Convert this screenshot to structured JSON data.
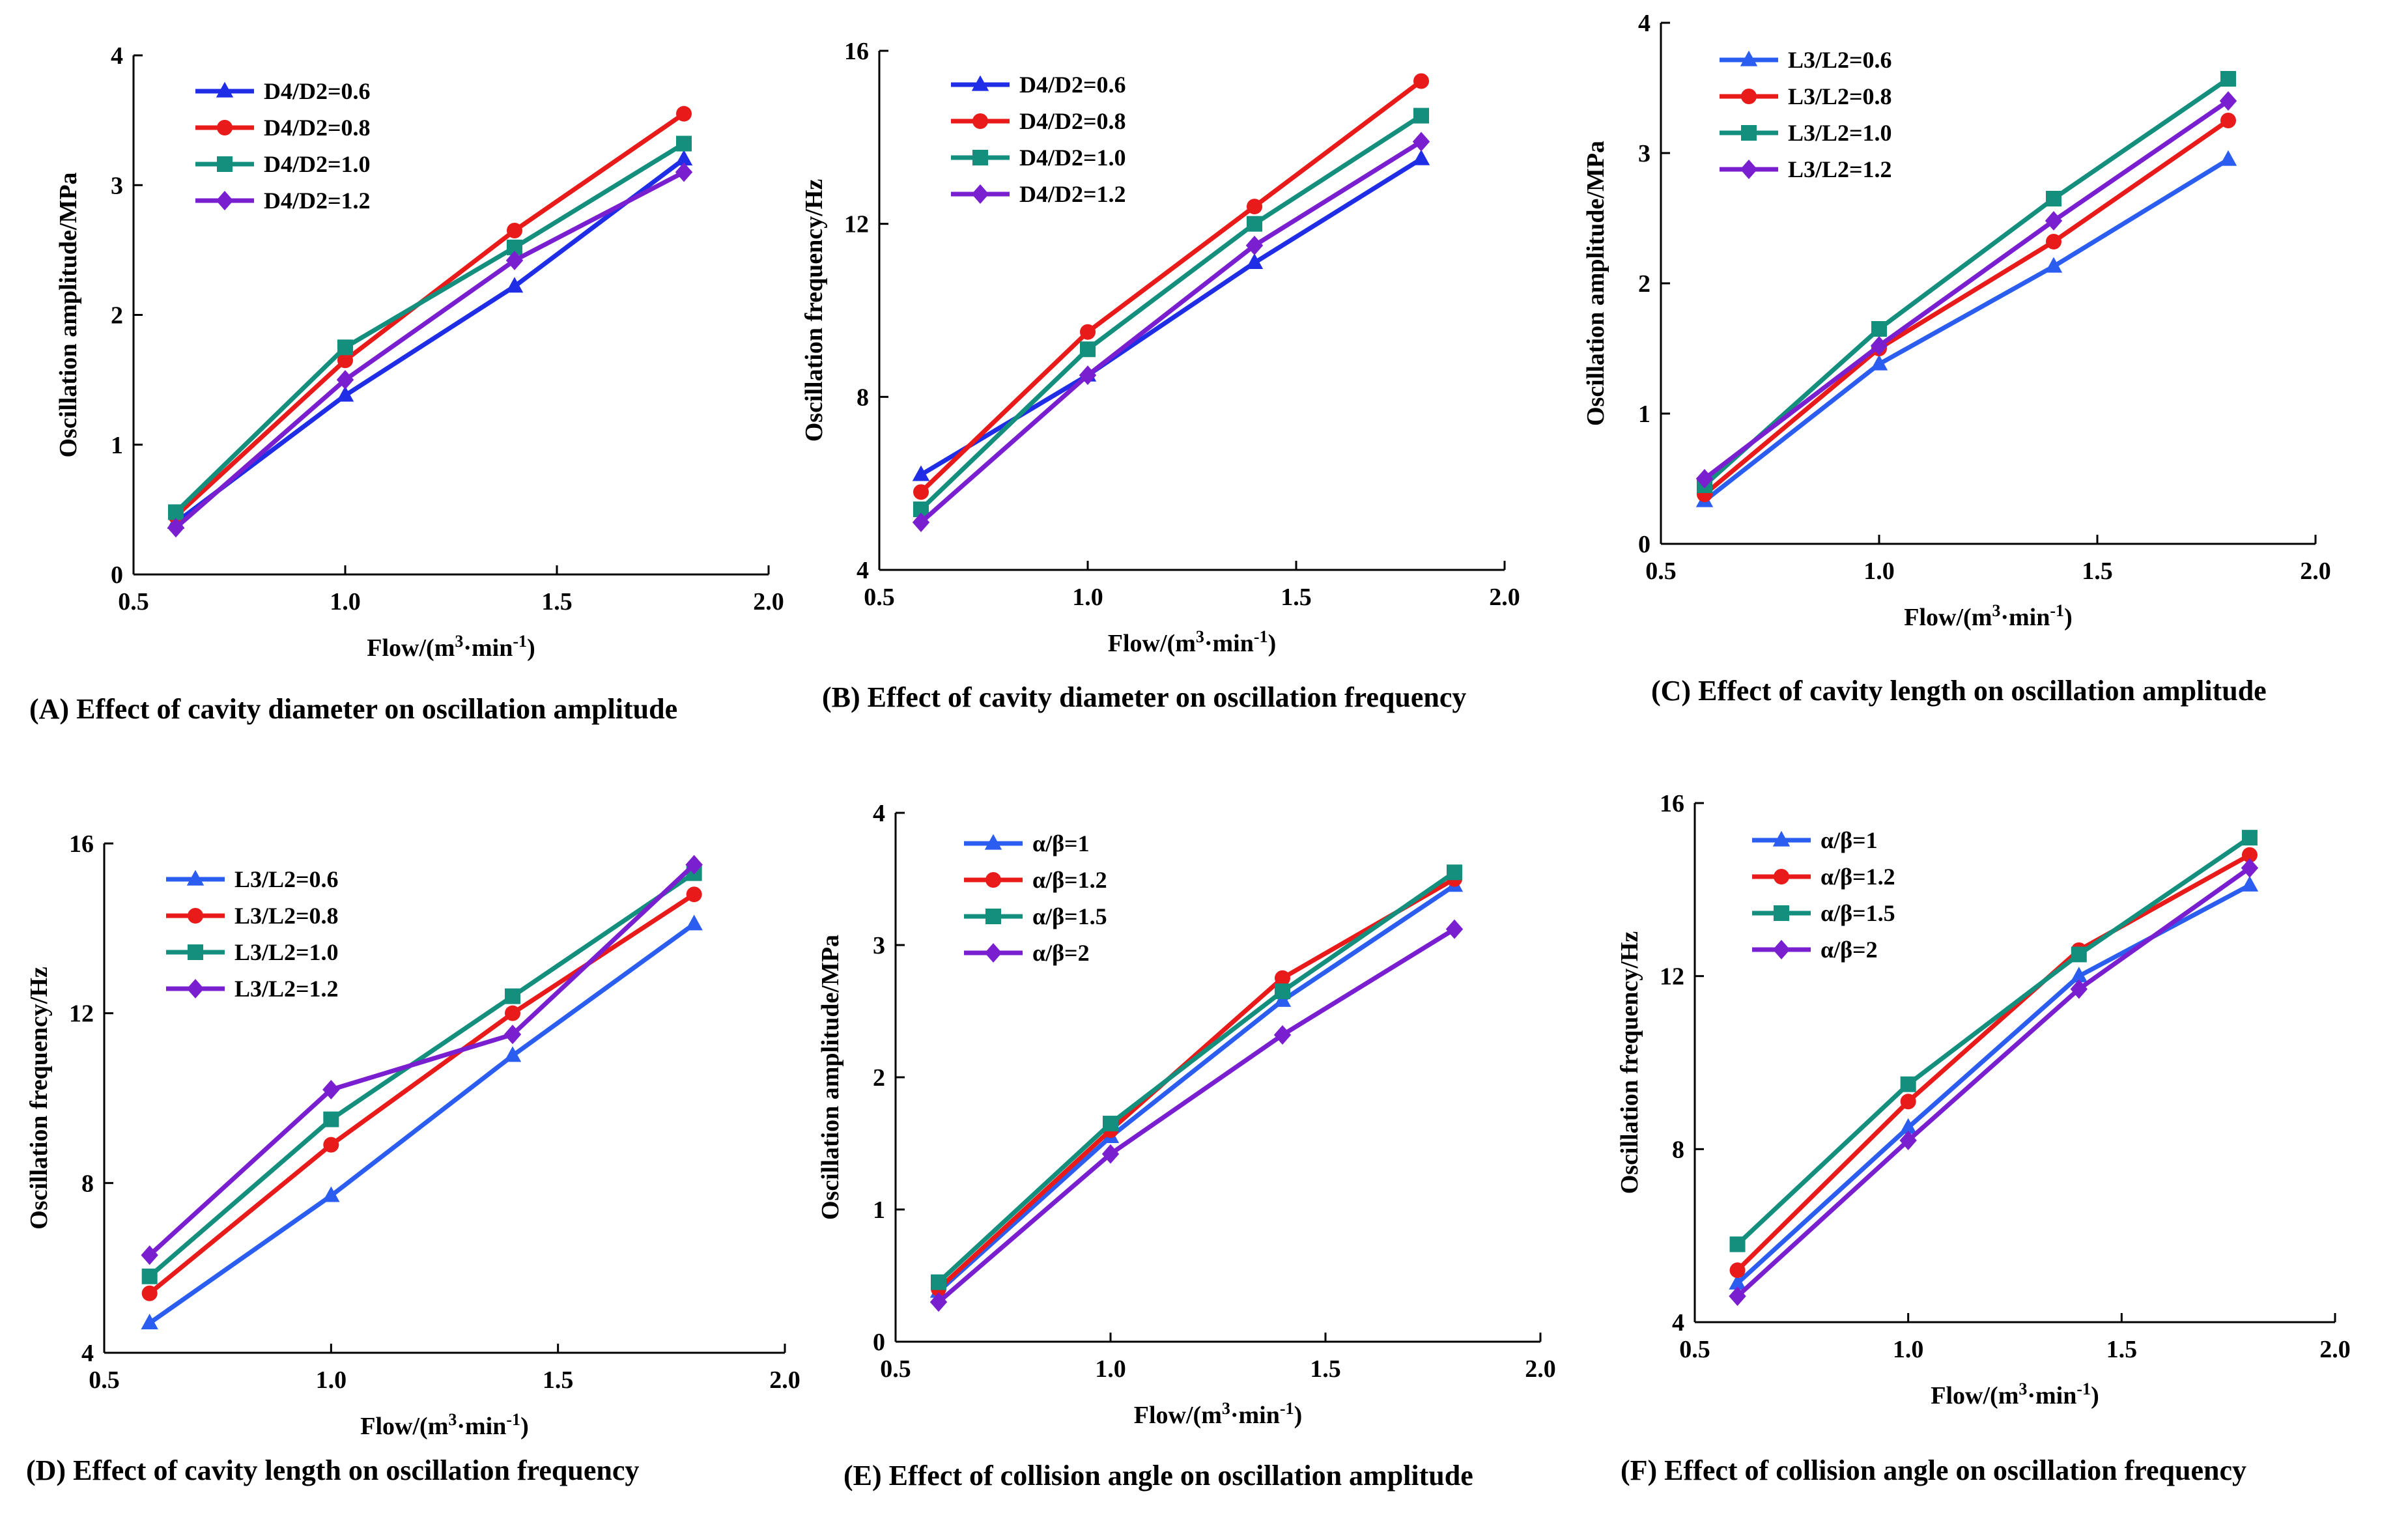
{
  "chart_data": [
    {
      "type": "line",
      "caption": "(A) Effect of cavity diameter on oscillation amplitude",
      "xlabel_main": "Flow/(m",
      "xlabel_sup1": "3",
      "xlabel_mid": "·min",
      "xlabel_sup2": "-1",
      "xlabel_end": ")",
      "ylabel": "Oscillation amplitude/MPa",
      "xlim": [
        0.5,
        2.0
      ],
      "ylim": [
        0,
        4
      ],
      "xticks": [
        "0.5",
        "1.0",
        "1.5",
        "2.0"
      ],
      "yticks": [
        "0",
        "1",
        "2",
        "3",
        "4"
      ],
      "x": [
        0.6,
        1.0,
        1.4,
        1.8
      ],
      "series": [
        {
          "name": "D4/D2=0.6",
          "color": "#1f2ee6",
          "marker": "triangle",
          "values": [
            0.4,
            1.38,
            2.22,
            3.2
          ]
        },
        {
          "name": "D4/D2=0.8",
          "color": "#e81a1a",
          "marker": "circle",
          "values": [
            0.45,
            1.65,
            2.65,
            3.55
          ]
        },
        {
          "name": "D4/D2=1.0",
          "color": "#148f7e",
          "marker": "square",
          "values": [
            0.48,
            1.75,
            2.52,
            3.32
          ]
        },
        {
          "name": "D4/D2=1.2",
          "color": "#7a1fd0",
          "marker": "diamond",
          "values": [
            0.36,
            1.5,
            2.42,
            3.1
          ]
        }
      ]
    },
    {
      "type": "line",
      "caption": "(B) Effect of cavity diameter on oscillation frequency",
      "xlabel_main": "Flow/(m",
      "xlabel_sup1": "3",
      "xlabel_mid": "·min",
      "xlabel_sup2": "-1",
      "xlabel_end": ")",
      "ylabel": "Oscillation frequency/Hz",
      "xlim": [
        0.5,
        2.0
      ],
      "ylim": [
        4,
        16
      ],
      "xticks": [
        "0.5",
        "1.0",
        "1.5",
        "2.0"
      ],
      "yticks": [
        "4",
        "8",
        "12",
        "16"
      ],
      "x": [
        0.6,
        1.0,
        1.4,
        1.8
      ],
      "series": [
        {
          "name": "D4/D2=0.6",
          "color": "#1f2ee6",
          "marker": "triangle",
          "values": [
            6.2,
            8.5,
            11.1,
            13.5
          ]
        },
        {
          "name": "D4/D2=0.8",
          "color": "#e81a1a",
          "marker": "circle",
          "values": [
            5.8,
            9.5,
            12.4,
            15.3
          ]
        },
        {
          "name": "D4/D2=1.0",
          "color": "#148f7e",
          "marker": "square",
          "values": [
            5.4,
            9.1,
            12.0,
            14.5
          ]
        },
        {
          "name": "D4/D2=1.2",
          "color": "#7a1fd0",
          "marker": "diamond",
          "values": [
            5.1,
            8.5,
            11.5,
            13.9
          ]
        }
      ]
    },
    {
      "type": "line",
      "caption": "(C) Effect of cavity length on oscillation amplitude",
      "xlabel_main": "Flow/(m",
      "xlabel_sup1": "3",
      "xlabel_mid": "·min",
      "xlabel_sup2": "-1",
      "xlabel_end": ")",
      "ylabel": "Oscillation amplitude/MPa",
      "xlim": [
        0.5,
        2.0
      ],
      "ylim": [
        0,
        4
      ],
      "xticks": [
        "0.5",
        "1.0",
        "1.5",
        "2.0"
      ],
      "yticks": [
        "0",
        "1",
        "2",
        "3",
        "4"
      ],
      "x": [
        0.6,
        1.0,
        1.4,
        1.8
      ],
      "series": [
        {
          "name": "L3/L2=0.6",
          "color": "#2b5ef0",
          "marker": "triangle",
          "values": [
            0.33,
            1.38,
            2.13,
            2.95
          ]
        },
        {
          "name": "L3/L2=0.8",
          "color": "#e81a1a",
          "marker": "circle",
          "values": [
            0.38,
            1.5,
            2.32,
            3.25
          ]
        },
        {
          "name": "L3/L2=1.0",
          "color": "#148f7e",
          "marker": "square",
          "values": [
            0.45,
            1.65,
            2.65,
            3.57
          ]
        },
        {
          "name": "L3/L2=1.2",
          "color": "#7a1fd0",
          "marker": "diamond",
          "values": [
            0.5,
            1.52,
            2.48,
            3.4
          ]
        }
      ]
    },
    {
      "type": "line",
      "caption": "(D) Effect of cavity length on oscillation frequency",
      "xlabel_main": "Flow/(m",
      "xlabel_sup1": "3",
      "xlabel_mid": "·min",
      "xlabel_sup2": "-1",
      "xlabel_end": ")",
      "ylabel": "Oscillation frequency/Hz",
      "xlim": [
        0.5,
        2.0
      ],
      "ylim": [
        4,
        16
      ],
      "xticks": [
        "0.5",
        "1.0",
        "1.5",
        "2.0"
      ],
      "yticks": [
        "4",
        "8",
        "12",
        "16"
      ],
      "x": [
        0.6,
        1.0,
        1.4,
        1.8
      ],
      "series": [
        {
          "name": "L3/L2=0.6",
          "color": "#2b5ef0",
          "marker": "triangle",
          "values": [
            4.7,
            7.7,
            11.0,
            14.1
          ]
        },
        {
          "name": "L3/L2=0.8",
          "color": "#e81a1a",
          "marker": "circle",
          "values": [
            5.4,
            8.9,
            12.0,
            14.8
          ]
        },
        {
          "name": "L3/L2=1.0",
          "color": "#148f7e",
          "marker": "square",
          "values": [
            5.8,
            9.5,
            12.4,
            15.3
          ]
        },
        {
          "name": "L3/L2=1.2",
          "color": "#7a1fd0",
          "marker": "diamond",
          "values": [
            6.3,
            10.2,
            11.5,
            15.5
          ]
        }
      ]
    },
    {
      "type": "line",
      "caption": "(E) Effect of collision angle on oscillation amplitude",
      "xlabel_main": "Flow/(m",
      "xlabel_sup1": "3",
      "xlabel_mid": "·min",
      "xlabel_sup2": "-1",
      "xlabel_end": ")",
      "ylabel": "Oscillation amplitude/MPa",
      "xlim": [
        0.5,
        2.0
      ],
      "ylim": [
        0,
        4
      ],
      "xticks": [
        "0.5",
        "1.0",
        "1.5",
        "2.0"
      ],
      "yticks": [
        "0",
        "1",
        "2",
        "3",
        "4"
      ],
      "x": [
        0.6,
        1.0,
        1.4,
        1.8
      ],
      "series": [
        {
          "name": "α/β=1",
          "color": "#2b5ef0",
          "marker": "triangle",
          "values": [
            0.38,
            1.55,
            2.58,
            3.45
          ]
        },
        {
          "name": "α/β=1.2",
          "color": "#e81a1a",
          "marker": "circle",
          "values": [
            0.4,
            1.6,
            2.75,
            3.5
          ]
        },
        {
          "name": "α/β=1.5",
          "color": "#148f7e",
          "marker": "square",
          "values": [
            0.45,
            1.65,
            2.65,
            3.55
          ]
        },
        {
          "name": "α/β=2",
          "color": "#7a1fd0",
          "marker": "diamond",
          "values": [
            0.3,
            1.42,
            2.32,
            3.12
          ]
        }
      ]
    },
    {
      "type": "line",
      "caption": "(F) Effect of collision angle on oscillation frequency",
      "xlabel_main": "Flow/(m",
      "xlabel_sup1": "3",
      "xlabel_mid": "·min",
      "xlabel_sup2": "-1",
      "xlabel_end": ")",
      "ylabel": "Oscillation frequency/Hz",
      "xlim": [
        0.5,
        2.0
      ],
      "ylim": [
        4,
        16
      ],
      "xticks": [
        "0.5",
        "1.0",
        "1.5",
        "2.0"
      ],
      "yticks": [
        "4",
        "8",
        "12",
        "16"
      ],
      "x": [
        0.6,
        1.0,
        1.4,
        1.8
      ],
      "series": [
        {
          "name": "α/β=1",
          "color": "#2b5ef0",
          "marker": "triangle",
          "values": [
            4.9,
            8.5,
            12.0,
            14.1
          ]
        },
        {
          "name": "α/β=1.2",
          "color": "#e81a1a",
          "marker": "circle",
          "values": [
            5.2,
            9.1,
            12.6,
            14.8
          ]
        },
        {
          "name": "α/β=1.5",
          "color": "#148f7e",
          "marker": "square",
          "values": [
            5.8,
            9.5,
            12.5,
            15.2
          ]
        },
        {
          "name": "α/β=2",
          "color": "#7a1fd0",
          "marker": "diamond",
          "values": [
            4.6,
            8.2,
            11.7,
            14.5
          ]
        }
      ]
    }
  ]
}
